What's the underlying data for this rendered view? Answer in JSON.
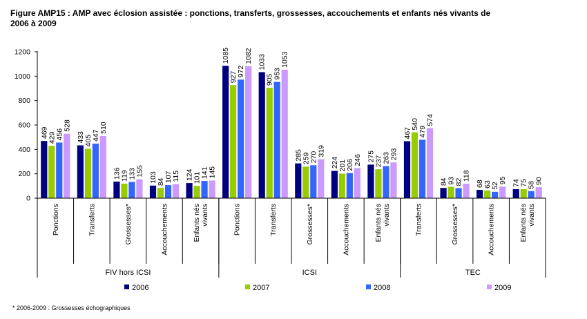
{
  "title": "Figure AMP15 : AMP avec éclosion assistée : ponctions, transferts, grossesses, accouchements et enfants nés vivants de 2006 à 2009",
  "footnote": "* 2006-2009 : Grossesses échographiques",
  "chart_data": {
    "type": "bar",
    "ylim": [
      0,
      1200
    ],
    "yticks": [
      0,
      200,
      400,
      600,
      800,
      1000,
      1200
    ],
    "grid": false,
    "legend_position": "bottom",
    "groups": [
      {
        "label": "FIV hors ICSI",
        "categories": [
          "Ponctions",
          "Transferts",
          "Grossesses*",
          "Accouchements",
          "Enfants nés vivants"
        ]
      },
      {
        "label": "ICSI",
        "categories": [
          "Ponctions",
          "Transferts",
          "Grossesses*",
          "Accouchements",
          "Enfants nés vivants"
        ]
      },
      {
        "label": "TEC",
        "categories": [
          "Transferts",
          "Grossesses*",
          "Accouchements",
          "Enfants nés vivants"
        ]
      }
    ],
    "categories": [
      "Ponctions",
      "Transferts",
      "Grossesses*",
      "Accouchements",
      "Enfants nés vivants",
      "Ponctions",
      "Transferts",
      "Grossesses*",
      "Accouchements",
      "Enfants nés vivants",
      "Transferts",
      "Grossesses*",
      "Accouchements",
      "Enfants nés vivants"
    ],
    "series": [
      {
        "name": "2006",
        "color": "#000080",
        "values": [
          469,
          433,
          136,
          103,
          124,
          1085,
          1033,
          285,
          224,
          275,
          467,
          84,
          68,
          74
        ]
      },
      {
        "name": "2007",
        "color": "#99CC00",
        "values": [
          429,
          405,
          119,
          84,
          101,
          927,
          905,
          259,
          201,
          237,
          540,
          93,
          63,
          75
        ]
      },
      {
        "name": "2008",
        "color": "#3366FF",
        "values": [
          456,
          447,
          133,
          107,
          141,
          972,
          953,
          270,
          206,
          263,
          479,
          82,
          52,
          58
        ]
      },
      {
        "name": "2009",
        "color": "#CC99FF",
        "values": [
          528,
          510,
          155,
          115,
          145,
          1082,
          1053,
          319,
          246,
          293,
          574,
          118,
          95,
          90
        ]
      }
    ]
  }
}
